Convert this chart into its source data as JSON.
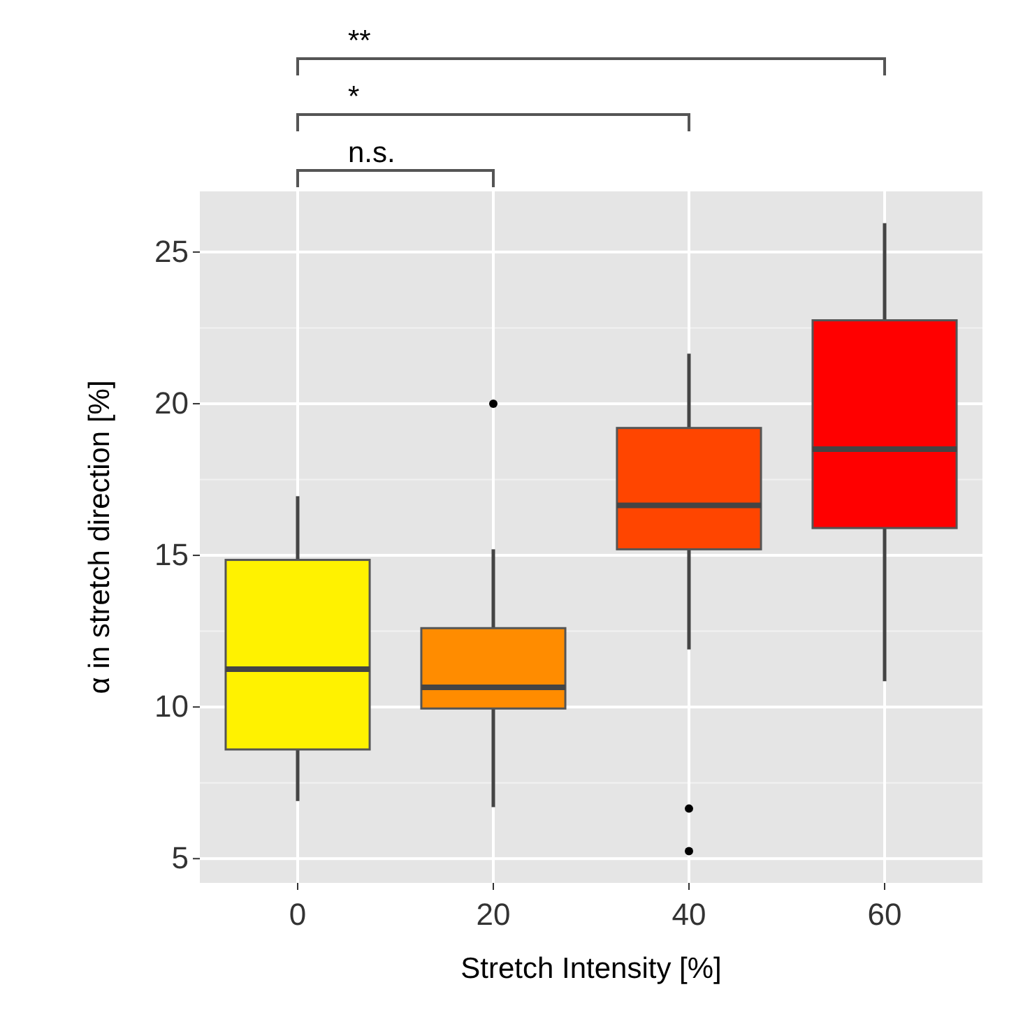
{
  "chart_data": {
    "type": "box",
    "xlabel": "Stretch Intensity [%]",
    "ylabel": "α in stretch direction [%]",
    "categories": [
      "0",
      "20",
      "40",
      "60"
    ],
    "colors": [
      "#fff200",
      "#ff8c00",
      "#ff4500",
      "#ff0000"
    ],
    "boxes": [
      {
        "low": 6.9,
        "q1": 8.6,
        "median": 11.25,
        "q3": 14.85,
        "high": 16.95
      },
      {
        "low": 6.7,
        "q1": 9.95,
        "median": 10.65,
        "q3": 12.6,
        "high": 15.2,
        "outliers": [
          20
        ]
      },
      {
        "low": 11.9,
        "q1": 15.2,
        "median": 16.65,
        "q3": 19.2,
        "high": 21.65,
        "outliers": [
          6.65,
          5.25
        ]
      },
      {
        "low": 10.85,
        "q1": 15.9,
        "median": 18.5,
        "q3": 22.75,
        "high": 25.95
      }
    ],
    "ylim": [
      4.2,
      27
    ],
    "yticks": [
      5,
      10,
      15,
      20,
      25
    ],
    "grid": true,
    "annotations": [
      "n.s.",
      "*",
      "**"
    ]
  }
}
